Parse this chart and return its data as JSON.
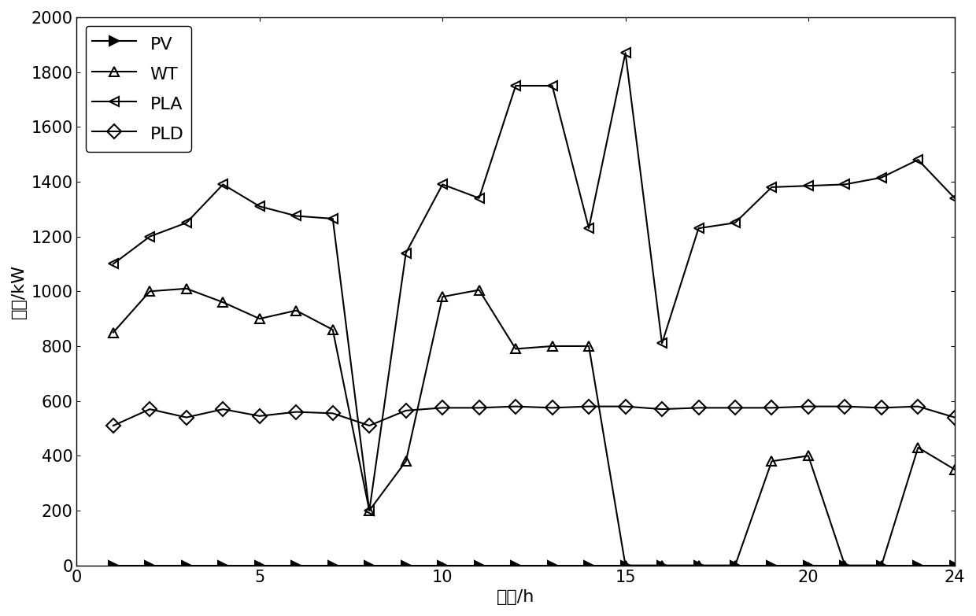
{
  "title": "",
  "xlabel": "时段/h",
  "ylabel": "功率/kW",
  "xlim": [
    0,
    24
  ],
  "ylim": [
    0,
    2000
  ],
  "xticks": [
    0,
    5,
    10,
    15,
    20,
    24
  ],
  "yticks": [
    0,
    200,
    400,
    600,
    800,
    1000,
    1200,
    1400,
    1600,
    1800,
    2000
  ],
  "series": {
    "PV": {
      "x": [
        1,
        2,
        3,
        4,
        5,
        6,
        7,
        8,
        9,
        10,
        11,
        12,
        13,
        14,
        15,
        16,
        17,
        18,
        19,
        20,
        21,
        22,
        23,
        24
      ],
      "y": [
        0,
        0,
        0,
        0,
        0,
        0,
        0,
        0,
        0,
        0,
        0,
        0,
        0,
        0,
        0,
        0,
        0,
        0,
        0,
        0,
        0,
        0,
        0,
        0
      ],
      "marker": ">",
      "fillstyle": "full",
      "label": "PV"
    },
    "WT": {
      "x": [
        1,
        2,
        3,
        4,
        5,
        6,
        7,
        8,
        9,
        10,
        11,
        12,
        13,
        14,
        15,
        16,
        17,
        18,
        19,
        20,
        21,
        22,
        23,
        24
      ],
      "y": [
        850,
        1000,
        1010,
        960,
        900,
        930,
        860,
        200,
        380,
        980,
        1005,
        790,
        800,
        800,
        0,
        0,
        0,
        0,
        380,
        400,
        0,
        0,
        430,
        350
      ],
      "marker": "^",
      "fillstyle": "none",
      "label": "WT"
    },
    "PLA": {
      "x": [
        1,
        2,
        3,
        4,
        5,
        6,
        7,
        8,
        9,
        10,
        11,
        12,
        13,
        14,
        15,
        16,
        17,
        18,
        19,
        20,
        21,
        22,
        23,
        24
      ],
      "y": [
        1100,
        1200,
        1250,
        1390,
        1310,
        1275,
        1265,
        200,
        1140,
        1390,
        1340,
        1750,
        1750,
        1230,
        1870,
        810,
        1230,
        1250,
        1380,
        1385,
        1390,
        1415,
        1480,
        1340
      ],
      "marker": "<",
      "fillstyle": "none",
      "label": "PLA"
    },
    "PLD": {
      "x": [
        1,
        2,
        3,
        4,
        5,
        6,
        7,
        8,
        9,
        10,
        11,
        12,
        13,
        14,
        15,
        16,
        17,
        18,
        19,
        20,
        21,
        22,
        23,
        24
      ],
      "y": [
        510,
        570,
        540,
        570,
        545,
        560,
        555,
        510,
        565,
        575,
        575,
        580,
        575,
        580,
        580,
        570,
        575,
        575,
        575,
        580,
        580,
        575,
        580,
        540
      ],
      "marker": "D",
      "fillstyle": "none",
      "label": "PLD"
    }
  },
  "line_color": "#000000",
  "line_width": 1.5,
  "marker_size": 9,
  "legend_loc": "upper left",
  "font_size": 16,
  "tick_font_size": 15,
  "figure_width": 12.4,
  "figure_height": 7.83,
  "dpi": 100
}
